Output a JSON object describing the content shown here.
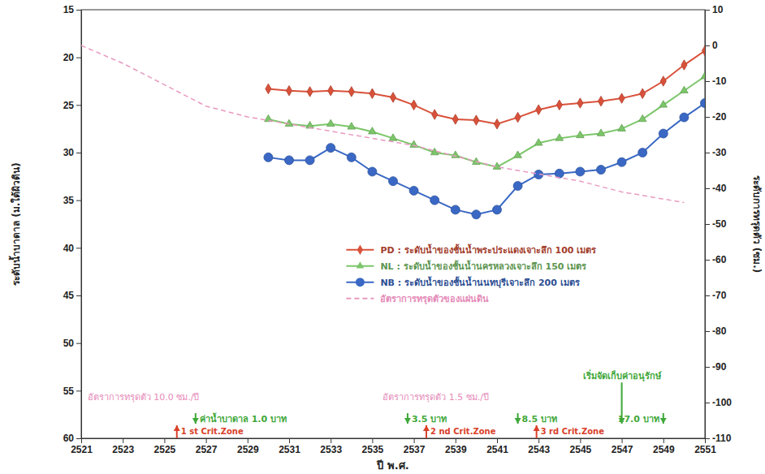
{
  "chart_data": {
    "type": "line",
    "x_label": "ปี พ.ศ.",
    "y_label": "ระดับน้ำบาดาล (ม.ใต้ผิวดิน)",
    "y2_label": "ระดับการทรุดตัว (ซม.)",
    "xlim": [
      2521,
      2551
    ],
    "xticks": [
      2521,
      2523,
      2525,
      2527,
      2529,
      2531,
      2533,
      2535,
      2537,
      2539,
      2541,
      2543,
      2545,
      2547,
      2549,
      2551
    ],
    "ylim": [
      15,
      60
    ],
    "yticks": [
      15,
      20,
      25,
      30,
      35,
      40,
      45,
      50,
      55,
      60
    ],
    "y2lim": [
      10,
      -110
    ],
    "y2ticks": [
      10,
      0,
      -10,
      -20,
      -30,
      -40,
      -50,
      -60,
      -70,
      -80,
      -90,
      -100,
      -110
    ],
    "grid": false,
    "legend": "center",
    "series": [
      {
        "name": "PD : ระดับน้ำของชั้นน้ำพระประแดงเจาะลึก 100 เมตร",
        "color": "#d9513a",
        "marker": "diamond",
        "line_style": "solid",
        "x": [
          2530,
          2531,
          2532,
          2533,
          2534,
          2535,
          2536,
          2537,
          2538,
          2539,
          2540,
          2541,
          2542,
          2543,
          2544,
          2545,
          2546,
          2547,
          2548,
          2549,
          2550,
          2551
        ],
        "values": [
          23.3,
          23.5,
          23.6,
          23.5,
          23.6,
          23.8,
          24.2,
          25.0,
          26.0,
          26.5,
          26.6,
          27.0,
          26.3,
          25.5,
          25.0,
          24.8,
          24.6,
          24.3,
          23.8,
          22.5,
          20.8,
          19.3
        ]
      },
      {
        "name": "NL : ระดับน้ำของชั้นน้ำนครหลวงเจาะลึก 150 เมตร",
        "color": "#7cc66a",
        "marker": "triangle",
        "line_style": "solid",
        "x": [
          2530,
          2531,
          2532,
          2533,
          2534,
          2535,
          2536,
          2537,
          2538,
          2539,
          2540,
          2541,
          2542,
          2543,
          2544,
          2545,
          2546,
          2547,
          2548,
          2549,
          2550,
          2551
        ],
        "values": [
          26.5,
          27.0,
          27.2,
          27.0,
          27.3,
          27.8,
          28.5,
          29.2,
          30.0,
          30.3,
          31.0,
          31.5,
          30.3,
          29.0,
          28.5,
          28.2,
          28.0,
          27.5,
          26.5,
          25.0,
          23.5,
          22.0
        ]
      },
      {
        "name": "NB : ระดับน้ำของชั้นน้ำนนทบุรีเจาะลึก 200 เมตร",
        "color": "#3a68c4",
        "marker": "circle",
        "line_style": "solid",
        "x": [
          2530,
          2531,
          2532,
          2533,
          2534,
          2535,
          2536,
          2537,
          2538,
          2539,
          2540,
          2541,
          2542,
          2543,
          2544,
          2545,
          2546,
          2547,
          2548,
          2549,
          2550,
          2551
        ],
        "values": [
          30.5,
          30.8,
          30.8,
          29.5,
          30.5,
          32.0,
          33.0,
          34.0,
          35.0,
          36.0,
          36.5,
          36.0,
          33.5,
          32.3,
          32.2,
          32.0,
          31.8,
          31.0,
          30.0,
          28.0,
          26.3,
          24.8
        ]
      },
      {
        "name": "อัตราการทรุดตัวของแผ่นดิน",
        "color": "#e89ac0",
        "marker": "none",
        "line_style": "dashed",
        "axis": "y2",
        "x": [
          2521,
          2523,
          2525,
          2527,
          2529,
          2531,
          2533,
          2535,
          2537,
          2539,
          2541,
          2543,
          2545,
          2547,
          2549,
          2550
        ],
        "values": [
          0,
          -5,
          -11,
          -17,
          -20,
          -22,
          -24,
          -26,
          -28,
          -31,
          -34,
          -36,
          -38,
          -41,
          -43,
          -44
        ]
      }
    ],
    "rate_labels": [
      {
        "text": "อัตราการทรุดตัว 10.0 ซม./ปี",
        "x": 2521.3,
        "y": 56
      },
      {
        "text": "อัตราการทรุดตัว 1.5 ซม./ปี",
        "x": 2535.5,
        "y": 56
      }
    ],
    "price_markers": [
      {
        "text": "ค่าน้ำบาดาล 1.0 บาท",
        "x": 2526.5,
        "y": 58.3
      },
      {
        "text": "3.5 บาท",
        "x": 2536.7,
        "y": 58.3
      },
      {
        "text": "8.5 บาท",
        "x": 2542,
        "y": 58.3
      },
      {
        "text": "17.0 บาท",
        "x": 2549,
        "y": 58.3
      }
    ],
    "notes": [
      {
        "text": "เริ่มจัดเก็บค่าอนุรักษ์",
        "x": 2547,
        "y": 53.8
      }
    ],
    "zone_markers": [
      {
        "text": "1 st Crit.Zone",
        "x": 2525.6,
        "y": 59.6
      },
      {
        "text": "2 nd Crit.Zone",
        "x": 2537.6,
        "y": 59.6
      },
      {
        "text": "3 rd Crit.Zone",
        "x": 2542.9,
        "y": 59.6
      }
    ]
  }
}
